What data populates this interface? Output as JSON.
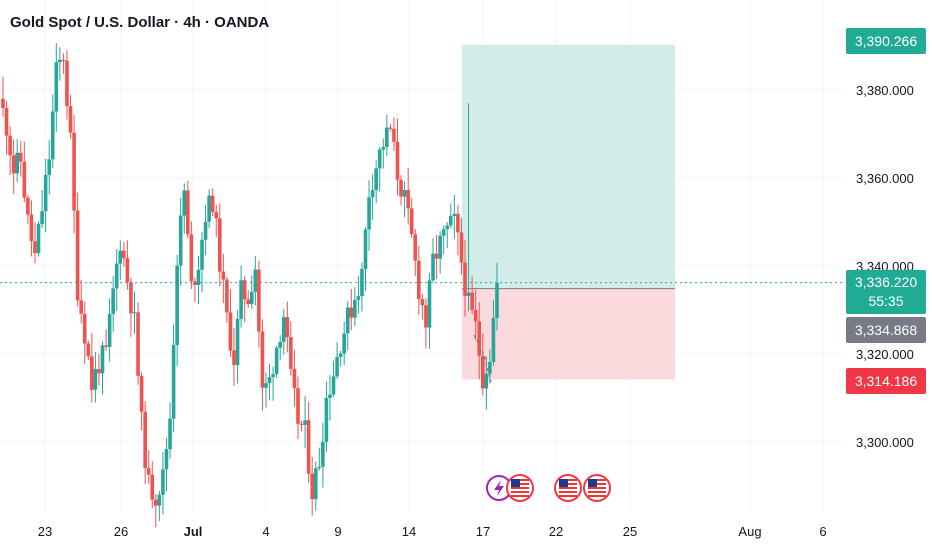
{
  "title": "Gold Spot / U.S. Dollar · 4h · OANDA",
  "colors": {
    "up": "#26a69a",
    "down": "#ef5350",
    "target_zone": "#d2ede8",
    "stop_zone": "#fbdadd",
    "current_line": "#22ab94",
    "grid": "#f0f3fa"
  },
  "price_tags": {
    "target": "3,390.266",
    "current": "3,336.220",
    "countdown": "55:35",
    "entry": "3,334.868",
    "stop": "3,314.186"
  },
  "event_icons": [
    "lightning-icon",
    "us-flag-icon",
    "us-flag-icon",
    "us-flag-icon"
  ],
  "chart_data": {
    "type": "candlestick",
    "title": "Gold Spot / U.S. Dollar · 4h · OANDA",
    "ylim": [
      3288,
      3398
    ],
    "y_ticks": [
      3300,
      3320,
      3340,
      3360,
      3380
    ],
    "y_tick_labels": [
      "3,300.000",
      "3,320.000",
      "3,340.000",
      "3,360.000",
      "3,380.000"
    ],
    "x_tick_labels": [
      "23",
      "26",
      "Jul",
      "4",
      "9",
      "14",
      "17",
      "22",
      "25",
      "Aug",
      "6"
    ],
    "anchors": [
      3378,
      3372,
      3362,
      3364,
      3350,
      3342,
      3353,
      3365,
      3384,
      3388,
      3368,
      3335,
      3325,
      3313,
      3318,
      3320,
      3334,
      3346,
      3337,
      3327,
      3304,
      3290,
      3288,
      3292,
      3306,
      3342,
      3357,
      3335,
      3341,
      3352,
      3355,
      3341,
      3328,
      3319,
      3334,
      3333,
      3340,
      3311,
      3314,
      3322,
      3329,
      3314,
      3305,
      3302,
      3289,
      3296,
      3310,
      3316,
      3323,
      3328,
      3333,
      3338,
      3357,
      3363,
      3368,
      3371,
      3361,
      3355,
      3346,
      3335,
      3327,
      3341,
      3345,
      3348,
      3350,
      3341,
      3331,
      3326,
      3315,
      3320,
      3336
    ],
    "last_close": 3336.22,
    "position": {
      "type": "long",
      "entry": 3334.868,
      "target": 3390.266,
      "stop": 3314.186
    }
  }
}
